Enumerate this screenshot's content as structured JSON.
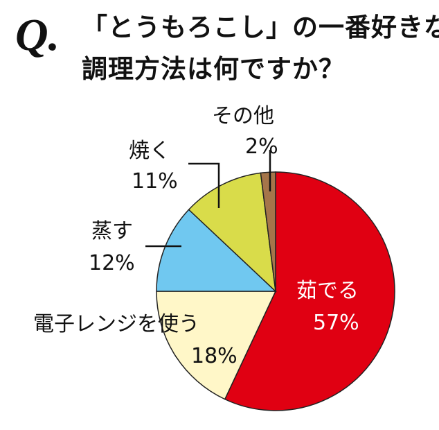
{
  "title": {
    "q_mark": "Q.",
    "line1": "「とうもろこし」の一番好きな",
    "line2": "調理方法は何ですか？"
  },
  "chart_data": {
    "type": "pie",
    "start_angle_deg": 0,
    "direction": "clockwise",
    "slices": [
      {
        "name": "茹でる",
        "value": 57,
        "label": "57%",
        "color": "#e00012"
      },
      {
        "name": "電子レンジを使う",
        "value": 18,
        "label": "18%",
        "color": "#fff7c8"
      },
      {
        "name": "蒸す",
        "value": 12,
        "label": "12%",
        "color": "#70c8f0"
      },
      {
        "name": "焼く",
        "value": 11,
        "label": "11%",
        "color": "#d9dc4a"
      },
      {
        "name": "その他",
        "value": 2,
        "label": "2%",
        "color": "#a5754a"
      }
    ]
  }
}
